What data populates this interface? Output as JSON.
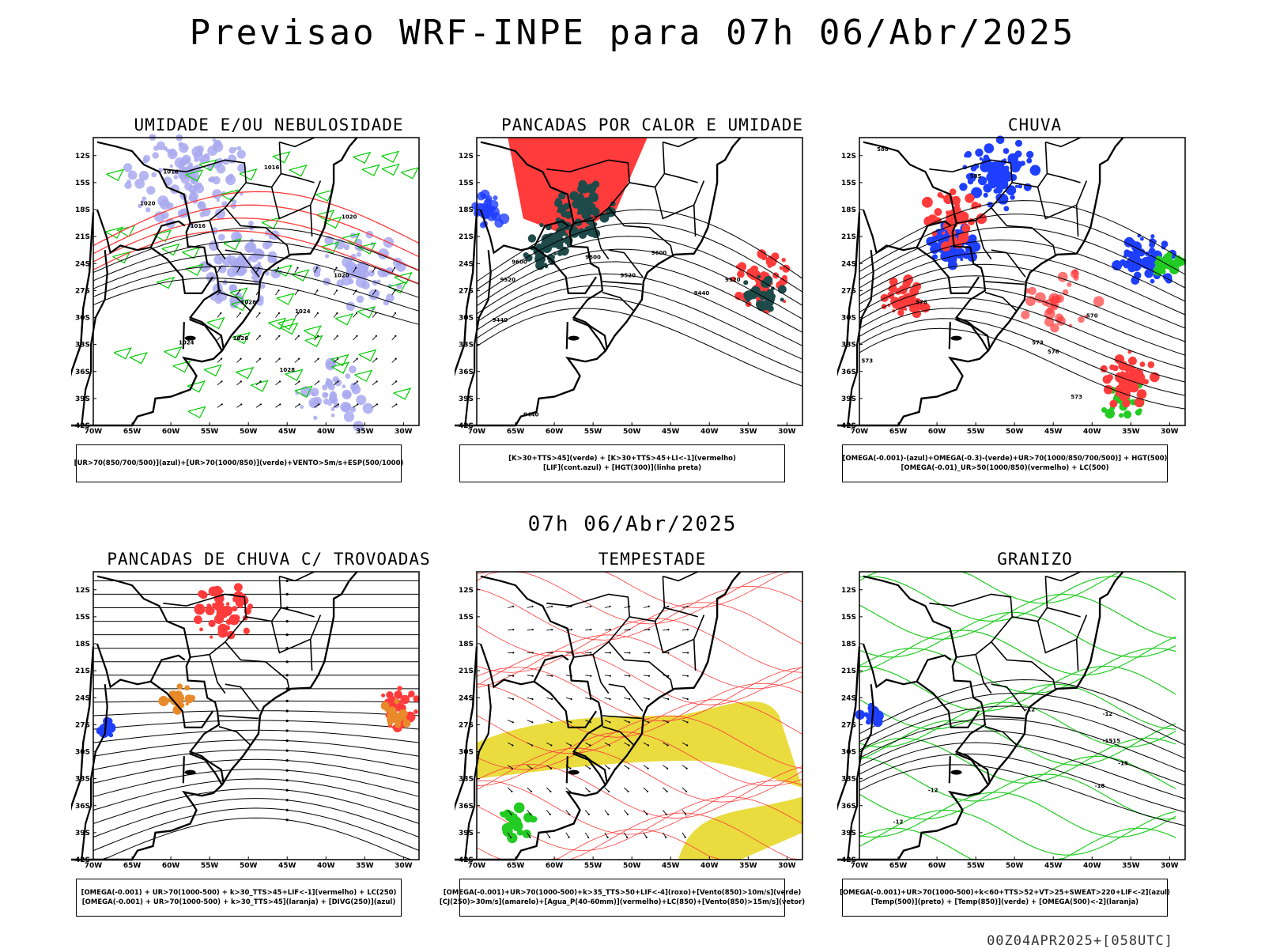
{
  "header": {
    "title": "Previsao WRF-INPE  para 07h 06/Abr/2025",
    "date_label": "07h 06/Abr/2025",
    "run_label": "00Z04APR2025+[058UTC]"
  },
  "axes": {
    "lat_ticks": [
      "12S",
      "15S",
      "18S",
      "21S",
      "24S",
      "27S",
      "30S",
      "33S",
      "36S",
      "39S",
      "42S"
    ],
    "lon_ticks": [
      "70W",
      "65W",
      "60W",
      "55W",
      "50W",
      "45W",
      "40W",
      "35W",
      "30W"
    ]
  },
  "colors": {
    "humidity_mid": "#a9a9f0",
    "humidity_low": "#00cc00",
    "red": "#ff3b3b",
    "dark_teal": "#1e4a4a",
    "blue": "#1f3fff",
    "orange": "#e8892a",
    "yellow": "#e8d82a",
    "green": "#22cc22",
    "contour_black": "#000000"
  },
  "panels": [
    {
      "id": "umidade",
      "title": "UMIDADE E/OU NEBULOSIDADE",
      "legend": [
        "[UR>70(850/700/500)](azul)+[UR>70(1000/850)](verde)+VENTO>5m/s+ESP(500/1000)"
      ],
      "contour_labels": [
        "1016",
        "1016",
        "1020",
        "1016",
        "1020",
        "1024",
        "1020",
        "1024",
        "1028",
        "1028",
        "1026"
      ]
    },
    {
      "id": "pancadas-calor",
      "title": "PANCADAS POR CALOR E UMIDADE",
      "legend": [
        "[K>30+TTS>45](verde) + [K>30+TTS>45+LI<-1](vermelho)",
        "[LIF](cont.azul) + [HGT(300)](linha preta)"
      ],
      "contour_labels": [
        "9600",
        "9520",
        "9440",
        "9500",
        "9520",
        "9520",
        "9440",
        "9600",
        "9440"
      ]
    },
    {
      "id": "chuva",
      "title": "CHUVA",
      "legend": [
        "[OMEGA(-0.001)-(azul)+OMEGA(-0.3)-(verde)+UR>70(1000/850/700/500)] + HGT(500)",
        "[OMEGA(-0.01)_UR>50(1000/850)(vermelho) + LC(500)"
      ],
      "contour_labels": [
        "588",
        "585",
        "576",
        "573",
        "570",
        "576",
        "573",
        "573"
      ]
    },
    {
      "id": "pancadas-trovoadas",
      "title": "PANCADAS DE CHUVA C/ TROVOADAS",
      "legend": [
        "[OMEGA(-0.001) + UR>70(1000-500) + k>30_TTS>45+LIF<-1](vermelho) + LC(250)",
        "[OMEGA(-0.001) + UR>70(1000-500) + k>30_TTS>45](laranja) + [DIVG(250)](azul)"
      ]
    },
    {
      "id": "tempestade",
      "title": "TEMPESTADE",
      "legend": [
        "[OMEGA(-0.001)+UR>70(1000-500)+k>35_TTS>50+LIF<-4](roxo)+[Vento(850)>10m/s](verde)",
        "[CJ(250)>30m/s](amarelo)+[Agua_P(40-60mm)](vermelho)+LC(850)+[Vento(850)>15m/s](vetor)"
      ]
    },
    {
      "id": "granizo",
      "title": "GRANIZO",
      "legend": [
        "[OMEGA(-0.001)+UR>70(1000-500)+k<60+TTS>52+VT>25+SWEAT>220+LIF<-2](azul)",
        "[Temp(500)](preto) + [Temp(850)](verde) + [OMEGA(500)<-2](laranja)"
      ],
      "contour_labels": [
        "-12",
        "-12",
        "-15",
        "-18",
        "-12",
        "-15",
        "-15",
        "-12"
      ]
    }
  ]
}
